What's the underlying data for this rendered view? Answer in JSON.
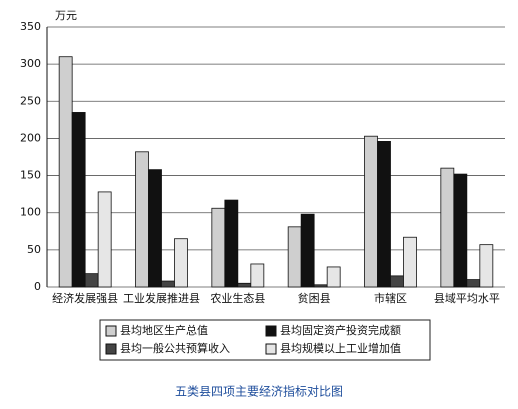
{
  "chart_data": {
    "type": "bar",
    "title": "五类县四项主要经济指标对比图",
    "y_unit": "万元",
    "categories": [
      "经济发展强县",
      "工业发展推进县",
      "农业生态县",
      "贫困县",
      "市辖区",
      "县域平均水平"
    ],
    "series": [
      {
        "name": "县均地区生产总值",
        "color": "#cfcfcf",
        "values": [
          310,
          182,
          106,
          81,
          203,
          160
        ]
      },
      {
        "name": "县均固定资产投资完成额",
        "color": "#111111",
        "values": [
          235,
          158,
          117,
          98,
          196,
          152
        ]
      },
      {
        "name": "县均一般公共预算收入",
        "color": "#444444",
        "values": [
          18,
          8,
          5,
          3,
          15,
          10
        ]
      },
      {
        "name": "县均规模以上工业增加值",
        "color": "#e6e6e6",
        "values": [
          128,
          65,
          31,
          27,
          67,
          57
        ]
      }
    ],
    "ylim": [
      0,
      350
    ],
    "yticks": [
      0,
      50,
      100,
      150,
      200,
      250,
      300,
      350
    ],
    "grid": true
  }
}
